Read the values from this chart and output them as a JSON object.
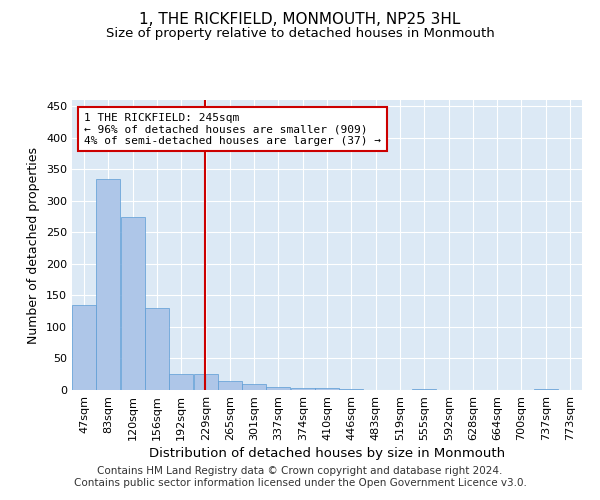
{
  "title": "1, THE RICKFIELD, MONMOUTH, NP25 3HL",
  "subtitle": "Size of property relative to detached houses in Monmouth",
  "xlabel": "Distribution of detached houses by size in Monmouth",
  "ylabel": "Number of detached properties",
  "bar_color": "#aec6e8",
  "bar_edge_color": "#5b9bd5",
  "background_color": "#ffffff",
  "plot_bg_color": "#dce9f5",
  "grid_color": "#ffffff",
  "vline_x": 245,
  "vline_color": "#cc0000",
  "annotation_text": "1 THE RICKFIELD: 245sqm\n← 96% of detached houses are smaller (909)\n4% of semi-detached houses are larger (37) →",
  "annotation_box_color": "#ffffff",
  "annotation_box_edge": "#cc0000",
  "footer_text": "Contains HM Land Registry data © Crown copyright and database right 2024.\nContains public sector information licensed under the Open Government Licence v3.0.",
  "bins": [
    47,
    83,
    120,
    156,
    192,
    229,
    265,
    301,
    337,
    374,
    410,
    446,
    483,
    519,
    555,
    592,
    628,
    664,
    700,
    737,
    773
  ],
  "bin_width": 36,
  "bar_heights": [
    135,
    335,
    275,
    130,
    25,
    25,
    15,
    10,
    5,
    3,
    3,
    1,
    0,
    0,
    1,
    0,
    0,
    0,
    0,
    1
  ],
  "ylim": [
    0,
    460
  ],
  "yticks": [
    0,
    50,
    100,
    150,
    200,
    250,
    300,
    350,
    400,
    450
  ],
  "title_fontsize": 11,
  "subtitle_fontsize": 9.5,
  "xlabel_fontsize": 9.5,
  "ylabel_fontsize": 9,
  "tick_fontsize": 8,
  "footer_fontsize": 7.5,
  "ann_fontsize": 8
}
